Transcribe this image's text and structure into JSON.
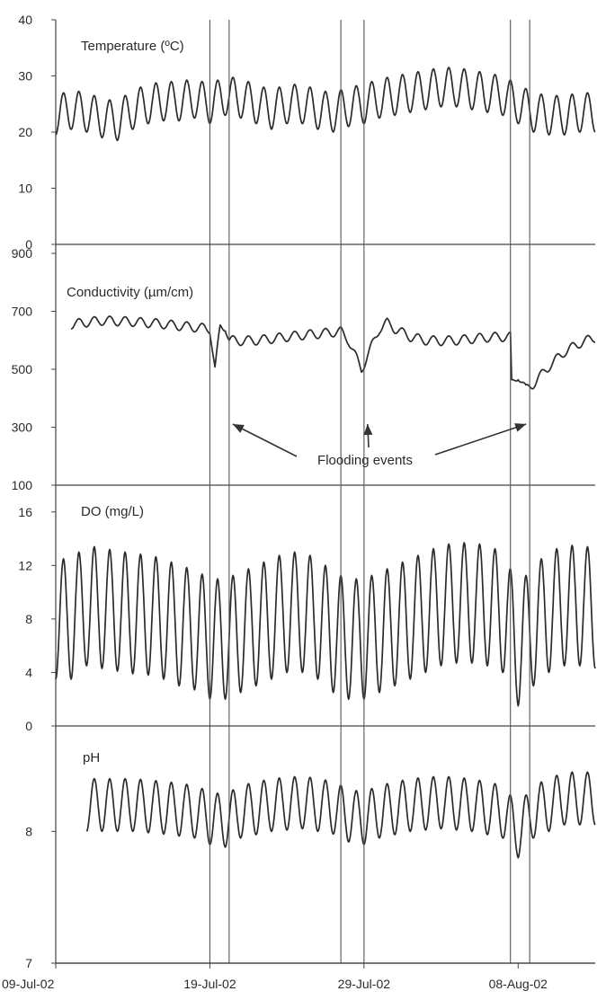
{
  "chart_data": {
    "type": "line",
    "layout": "stacked-panels",
    "x_tick_labels": [
      "09-Jul-02",
      "19-Jul-02",
      "29-Jul-02",
      "08-Aug-02"
    ],
    "x_range": [
      "2002-07-09",
      "2002-08-13"
    ],
    "event_markers": [
      [
        "2002-07-19T00:00",
        "2002-07-20T06:00"
      ],
      [
        "2002-07-27T12:00",
        "2002-07-29T00:00"
      ],
      [
        "2002-08-07T12:00",
        "2002-08-08T18:00"
      ]
    ],
    "annotation": {
      "text": "Flooding events",
      "targets": [
        "2002-07-20T06:00",
        "2002-07-29T00:00",
        "2002-08-08T18:00"
      ]
    },
    "panels": [
      {
        "id": "temperature",
        "title": "Temperature (ºC)",
        "ylim": [
          0,
          40
        ],
        "yticks": [
          "0",
          "10",
          "20",
          "30",
          "40"
        ],
        "series": [
          {
            "points": [
              [
                "2002-07-09",
                23.0
              ],
              [
                "2002-07-10",
                24.0
              ],
              [
                "2002-07-11",
                23.5
              ],
              [
                "2002-07-12",
                22.5
              ],
              [
                "2002-07-13",
                22.0
              ],
              [
                "2002-07-14",
                24.0
              ],
              [
                "2002-07-15",
                25.0
              ],
              [
                "2002-07-16",
                25.5
              ],
              [
                "2002-07-17",
                25.5
              ],
              [
                "2002-07-18",
                26.0
              ],
              [
                "2002-07-19",
                25.0
              ],
              [
                "2002-07-20",
                26.5
              ],
              [
                "2002-07-21",
                26.0
              ],
              [
                "2002-07-22",
                25.0
              ],
              [
                "2002-07-23",
                24.0
              ],
              [
                "2002-07-24",
                25.0
              ],
              [
                "2002-07-25",
                25.0
              ],
              [
                "2002-07-26",
                24.0
              ],
              [
                "2002-07-27",
                23.5
              ],
              [
                "2002-07-28",
                24.5
              ],
              [
                "2002-07-29",
                25.0
              ],
              [
                "2002-07-30",
                26.0
              ],
              [
                "2002-07-31",
                26.5
              ],
              [
                "2002-08-01",
                27.0
              ],
              [
                "2002-08-02",
                27.5
              ],
              [
                "2002-08-03",
                28.0
              ],
              [
                "2002-08-04",
                28.0
              ],
              [
                "2002-08-05",
                27.5
              ],
              [
                "2002-08-06",
                27.0
              ],
              [
                "2002-08-07",
                26.5
              ],
              [
                "2002-08-08",
                25.0
              ],
              [
                "2002-08-09",
                23.5
              ],
              [
                "2002-08-10",
                23.0
              ],
              [
                "2002-08-11",
                23.0
              ],
              [
                "2002-08-12",
                23.5
              ],
              [
                "2002-08-13",
                23.5
              ]
            ]
          }
        ],
        "daily_amplitude": 3.5
      },
      {
        "id": "conductivity",
        "title": "Conductivity (µm/cm)",
        "ylim": [
          100,
          900
        ],
        "yticks": [
          "100",
          "300",
          "500",
          "700",
          "900"
        ],
        "series": [
          {
            "points": [
              [
                "2002-07-10",
                655
              ],
              [
                "2002-07-11",
                662
              ],
              [
                "2002-07-12",
                668
              ],
              [
                "2002-07-13",
                666
              ],
              [
                "2002-07-14",
                664
              ],
              [
                "2002-07-15",
                660
              ],
              [
                "2002-07-16",
                656
              ],
              [
                "2002-07-17",
                650
              ],
              [
                "2002-07-18",
                645
              ],
              [
                "2002-07-18T12:00",
                642
              ],
              [
                "2002-07-19",
                640
              ],
              [
                "2002-07-19T08:00",
                500
              ],
              [
                "2002-07-19T16:00",
                645
              ],
              [
                "2002-07-20",
                648
              ],
              [
                "2002-07-20T06:00",
                600
              ],
              [
                "2002-07-21",
                598
              ],
              [
                "2002-07-22",
                600
              ],
              [
                "2002-07-23",
                605
              ],
              [
                "2002-07-24",
                612
              ],
              [
                "2002-07-25",
                618
              ],
              [
                "2002-07-26",
                622
              ],
              [
                "2002-07-27",
                628
              ],
              [
                "2002-07-27T12:00",
                630
              ],
              [
                "2002-07-28",
                600
              ],
              [
                "2002-07-28T20:00",
                498
              ],
              [
                "2002-07-29T12:00",
                580
              ],
              [
                "2002-07-30",
                640
              ],
              [
                "2002-07-30T12:00",
                660
              ],
              [
                "2002-07-31",
                640
              ],
              [
                "2002-08-01",
                612
              ],
              [
                "2002-08-02",
                600
              ],
              [
                "2002-08-03",
                598
              ],
              [
                "2002-08-04",
                600
              ],
              [
                "2002-08-05",
                605
              ],
              [
                "2002-08-06",
                610
              ],
              [
                "2002-08-07",
                612
              ],
              [
                "2002-08-07T12:00",
                612
              ],
              [
                "2002-08-07T14:00",
                450
              ],
              [
                "2002-08-08",
                480
              ],
              [
                "2002-08-08T12:00",
                430
              ],
              [
                "2002-08-09",
                450
              ],
              [
                "2002-08-10",
                510
              ],
              [
                "2002-08-11",
                560
              ],
              [
                "2002-08-12",
                590
              ],
              [
                "2002-08-13",
                610
              ]
            ]
          }
        ],
        "daily_amplitude": 16
      },
      {
        "id": "do",
        "title": "DO (mg/L)",
        "ylim": [
          0,
          18
        ],
        "yticks": [
          "0",
          "4",
          "8",
          "12",
          "16"
        ],
        "series": [
          {
            "points": [
              [
                "2002-07-09",
                8.0
              ],
              [
                "2002-07-10",
                8.0
              ],
              [
                "2002-07-11",
                9.0
              ],
              [
                "2002-07-12",
                8.8
              ],
              [
                "2002-07-13",
                8.6
              ],
              [
                "2002-07-14",
                8.4
              ],
              [
                "2002-07-15",
                8.3
              ],
              [
                "2002-07-16",
                8.0
              ],
              [
                "2002-07-17",
                7.5
              ],
              [
                "2002-07-18",
                7.2
              ],
              [
                "2002-07-19",
                6.5
              ],
              [
                "2002-07-20",
                6.5
              ],
              [
                "2002-07-21",
                7.0
              ],
              [
                "2002-07-22",
                7.5
              ],
              [
                "2002-07-23",
                8.0
              ],
              [
                "2002-07-24",
                8.5
              ],
              [
                "2002-07-25",
                8.5
              ],
              [
                "2002-07-26",
                8.0
              ],
              [
                "2002-07-27",
                7.0
              ],
              [
                "2002-07-28",
                6.5
              ],
              [
                "2002-07-29",
                6.5
              ],
              [
                "2002-07-30",
                7.0
              ],
              [
                "2002-07-31",
                7.5
              ],
              [
                "2002-08-01",
                8.0
              ],
              [
                "2002-08-02",
                8.5
              ],
              [
                "2002-08-03",
                9.0
              ],
              [
                "2002-08-04",
                9.2
              ],
              [
                "2002-08-05",
                9.2
              ],
              [
                "2002-08-06",
                9.0
              ],
              [
                "2002-08-07",
                8.5
              ],
              [
                "2002-08-08",
                6.0
              ],
              [
                "2002-08-09",
                7.5
              ],
              [
                "2002-08-10",
                8.5
              ],
              [
                "2002-08-11",
                9.0
              ],
              [
                "2002-08-12",
                9.0
              ],
              [
                "2002-08-13",
                8.8
              ]
            ]
          }
        ],
        "daily_amplitude": 4.5
      },
      {
        "id": "ph",
        "title": "pH",
        "ylim": [
          7,
          8.8
        ],
        "yticks": [
          "7",
          "8"
        ],
        "series": [
          {
            "points": [
              [
                "2002-07-11",
                8.2
              ],
              [
                "2002-07-12",
                8.2
              ],
              [
                "2002-07-14",
                8.2
              ],
              [
                "2002-07-16",
                8.18
              ],
              [
                "2002-07-18",
                8.15
              ],
              [
                "2002-07-19",
                8.1
              ],
              [
                "2002-07-20",
                8.08
              ],
              [
                "2002-07-21",
                8.15
              ],
              [
                "2002-07-23",
                8.2
              ],
              [
                "2002-07-25",
                8.22
              ],
              [
                "2002-07-27",
                8.18
              ],
              [
                "2002-07-28",
                8.12
              ],
              [
                "2002-07-29",
                8.1
              ],
              [
                "2002-07-30",
                8.15
              ],
              [
                "2002-08-01",
                8.2
              ],
              [
                "2002-08-03",
                8.22
              ],
              [
                "2002-08-05",
                8.2
              ],
              [
                "2002-08-07",
                8.15
              ],
              [
                "2002-08-08",
                8.0
              ],
              [
                "2002-08-09",
                8.15
              ],
              [
                "2002-08-11",
                8.25
              ],
              [
                "2002-08-13",
                8.25
              ]
            ]
          }
        ],
        "daily_amplitude": 0.2
      }
    ]
  }
}
